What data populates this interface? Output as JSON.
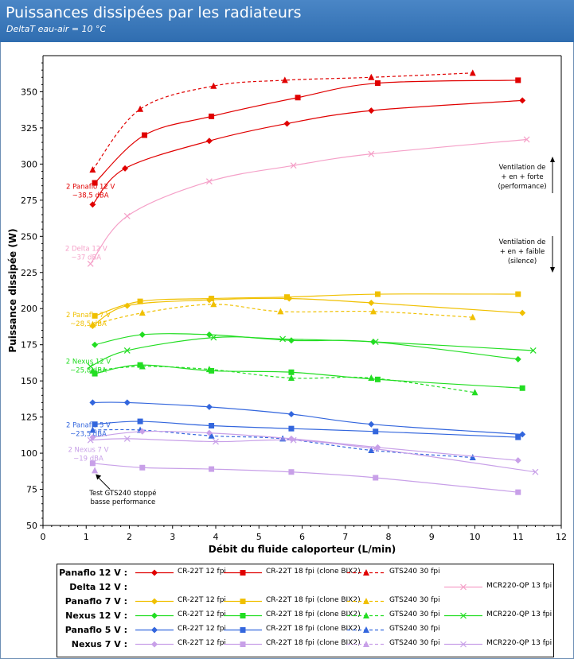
{
  "title": "Puissances dissipées par les radiateurs",
  "subtitle": "DeltaT eau-air = 10 °C",
  "chart_data": {
    "type": "line",
    "xlabel": "Débit du fluide caloporteur (L/min)",
    "ylabel": "Puissance dissipée (W)",
    "xlim": [
      0,
      12
    ],
    "ylim": [
      50,
      375
    ],
    "xticks": [
      "0",
      "1",
      "2",
      "3",
      "4",
      "5",
      "6",
      "7",
      "8",
      "9",
      "10",
      "11",
      "12"
    ],
    "yticks": [
      "50",
      "75",
      "100",
      "125",
      "150",
      "175",
      "200",
      "225",
      "250",
      "275",
      "300",
      "325",
      "350"
    ],
    "series": [
      {
        "group": "Panaflo 12 V :",
        "name": "CR-22T 12 fpi",
        "color": "#e00000",
        "marker": "diamond",
        "dash": false,
        "x": [
          1.15,
          1.9,
          3.85,
          5.65,
          7.6,
          11.1
        ],
        "y": [
          272,
          297,
          316,
          328,
          337,
          344
        ]
      },
      {
        "group": "Panaflo 12 V :",
        "name": "CR-22T 18 fpi (clone BIX2)",
        "color": "#e00000",
        "marker": "square",
        "dash": false,
        "x": [
          1.2,
          2.35,
          3.9,
          5.9,
          7.75,
          11.0
        ],
        "y": [
          287,
          320,
          333,
          346,
          356,
          358
        ]
      },
      {
        "group": "Panaflo 12 V :",
        "name": "GTS240 30 fpi",
        "color": "#e00000",
        "marker": "triangle",
        "dash": true,
        "x": [
          1.15,
          2.25,
          3.95,
          5.6,
          7.6,
          9.95
        ],
        "y": [
          296,
          338,
          354,
          358,
          360,
          363
        ]
      },
      {
        "group": "Delta 12 V :",
        "name": "MCR220-QP 13 fpi",
        "color": "#f5a0c8",
        "marker": "x",
        "dash": false,
        "x": [
          1.1,
          1.95,
          3.85,
          5.8,
          7.6,
          11.2
        ],
        "y": [
          231,
          264,
          288,
          299,
          307,
          317
        ]
      },
      {
        "group": "Panaflo 7 V :",
        "name": "CR-22T 12 fpi",
        "color": "#f0c000",
        "marker": "diamond",
        "dash": false,
        "x": [
          1.15,
          1.95,
          3.85,
          5.7,
          7.6,
          11.1
        ],
        "y": [
          188,
          202,
          206,
          207,
          204,
          197
        ]
      },
      {
        "group": "Panaflo 7 V :",
        "name": "CR-22T 18 fpi (clone BIX2)",
        "color": "#f0c000",
        "marker": "square",
        "dash": false,
        "x": [
          1.2,
          2.25,
          3.9,
          5.65,
          7.75,
          11.0
        ],
        "y": [
          195,
          205,
          207,
          208,
          210,
          210
        ]
      },
      {
        "group": "Panaflo 7 V :",
        "name": "GTS240 30 fpi",
        "color": "#f0c000",
        "marker": "triangle",
        "dash": true,
        "x": [
          1.15,
          2.3,
          3.95,
          5.5,
          7.65,
          9.95
        ],
        "y": [
          189,
          197,
          203,
          198,
          198,
          194
        ]
      },
      {
        "group": "Nexus 12 V :",
        "name": "CR-22T 12 fpi",
        "color": "#22dd22",
        "marker": "diamond",
        "dash": false,
        "x": [
          1.2,
          2.3,
          3.85,
          5.75,
          7.65,
          11.0
        ],
        "y": [
          175,
          182,
          182,
          178,
          177,
          165
        ]
      },
      {
        "group": "Nexus 12 V :",
        "name": "CR-22T 18 fpi (clone BIX2)",
        "color": "#22dd22",
        "marker": "square",
        "dash": false,
        "x": [
          1.2,
          2.25,
          3.9,
          5.75,
          7.75,
          11.1
        ],
        "y": [
          155,
          161,
          157,
          156,
          151,
          145
        ]
      },
      {
        "group": "Nexus 12 V :",
        "name": "GTS240 30 fpi",
        "color": "#22dd22",
        "marker": "triangle",
        "dash": true,
        "x": [
          1.15,
          2.3,
          3.85,
          5.75,
          7.6,
          10.0
        ],
        "y": [
          157,
          160,
          158,
          152,
          152,
          142
        ]
      },
      {
        "group": "Nexus 12 V :",
        "name": "MCR220-QP 13 fpi",
        "color": "#22dd22",
        "marker": "x",
        "dash": false,
        "x": [
          1.1,
          1.95,
          3.95,
          5.55,
          7.7,
          11.35
        ],
        "y": [
          160,
          171,
          180,
          179,
          177,
          171
        ]
      },
      {
        "group": "Panaflo 5 V :",
        "name": "CR-22T 12 fpi",
        "color": "#3366dd",
        "marker": "diamond",
        "dash": false,
        "x": [
          1.15,
          1.95,
          3.85,
          5.75,
          7.6,
          11.1
        ],
        "y": [
          135,
          135,
          132,
          127,
          120,
          113
        ]
      },
      {
        "group": "Panaflo 5 V :",
        "name": "CR-22T 18 fpi (clone BIX2)",
        "color": "#3366dd",
        "marker": "square",
        "dash": false,
        "x": [
          1.2,
          2.25,
          3.9,
          5.75,
          7.7,
          11.0
        ],
        "y": [
          120,
          122,
          119,
          117,
          115,
          111
        ]
      },
      {
        "group": "Panaflo 5 V :",
        "name": "GTS240 30 fpi",
        "color": "#3366dd",
        "marker": "triangle",
        "dash": true,
        "x": [
          1.15,
          2.25,
          3.9,
          5.55,
          7.6,
          9.95
        ],
        "y": [
          116,
          116,
          112,
          110,
          102,
          97
        ]
      },
      {
        "group": "Nexus 7 V :",
        "name": "CR-22T 12 fpi",
        "color": "#c8a0e8",
        "marker": "diamond",
        "dash": false,
        "x": [
          1.15,
          2.3,
          3.85,
          5.75,
          7.75,
          11.0
        ],
        "y": [
          111,
          115,
          114,
          110,
          104,
          95
        ]
      },
      {
        "group": "Nexus 7 V :",
        "name": "CR-22T 18 fpi (clone BIX2)",
        "color": "#c8a0e8",
        "marker": "square",
        "dash": false,
        "x": [
          1.15,
          2.3,
          3.9,
          5.75,
          7.7,
          11.0
        ],
        "y": [
          93,
          90,
          89,
          87,
          83,
          73
        ]
      },
      {
        "group": "Nexus 7 V :",
        "name": "GTS240 30 fpi",
        "color": "#c8a0e8",
        "marker": "triangle",
        "dash": true,
        "x": [
          1.2
        ],
        "y": [
          88
        ]
      },
      {
        "group": "Nexus 7 V :",
        "name": "MCR220-QP 13 fpi",
        "color": "#c8a0e8",
        "marker": "x",
        "dash": false,
        "x": [
          1.1,
          1.95,
          4.0,
          5.8,
          7.7,
          11.4
        ],
        "y": [
          109,
          110,
          108,
          109,
          103,
          87
        ]
      }
    ],
    "annotations": [
      {
        "lines": [
          "2 Panaflo 12 V",
          "~38,5 dBA"
        ],
        "color": "#e00000",
        "x": 1.1,
        "y": 283
      },
      {
        "lines": [
          "2 Delta 12 V",
          "~37 dBA"
        ],
        "color": "#f5a0c8",
        "x": 1.0,
        "y": 240
      },
      {
        "lines": [
          "2 Panaflo 7 V",
          "~28,5 dBA"
        ],
        "color": "#f0c000",
        "x": 1.05,
        "y": 194
      },
      {
        "lines": [
          "2 Nexus 12 V",
          "~25,8 dBA"
        ],
        "color": "#22dd22",
        "x": 1.05,
        "y": 162
      },
      {
        "lines": [
          "2 Panaflo 5 V",
          "~23,5 dBA"
        ],
        "color": "#3366dd",
        "x": 1.05,
        "y": 118
      },
      {
        "lines": [
          "2 Nexus 7 V",
          "~19 dBA"
        ],
        "color": "#c8a0e8",
        "x": 1.05,
        "y": 101
      },
      {
        "lines": [
          "Test GTS240 stoppé",
          "basse performance"
        ],
        "color": "#000000",
        "x": 1.85,
        "y": 71
      }
    ],
    "side_notes": [
      {
        "lines": [
          "Ventilation de",
          "+ en + forte",
          "(performance)"
        ]
      },
      {
        "lines": [
          "Ventilation de",
          "+ en + faible",
          "(silence)"
        ]
      }
    ],
    "legend_groups": [
      "Panaflo 12 V :",
      "Delta 12 V :",
      "Panaflo 7 V :",
      "Nexus 12 V :",
      "Panaflo 5 V :",
      "Nexus 7 V :"
    ],
    "grid": false,
    "legend_placement": "bottom"
  }
}
